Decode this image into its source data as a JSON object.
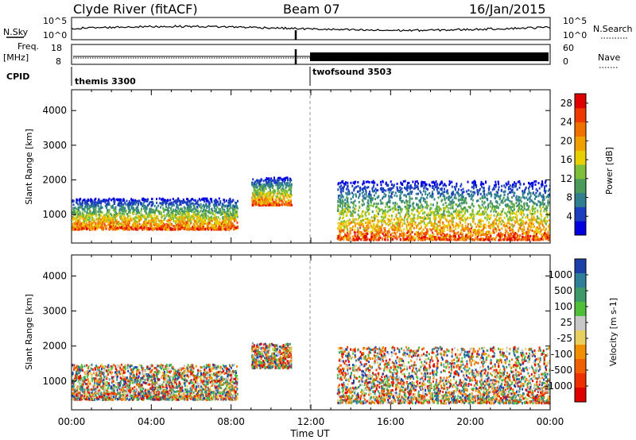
{
  "header": {
    "station": "Clyde River (fitACF)",
    "beam": "Beam 07",
    "date": "16/Jan/2015"
  },
  "status_panel": {
    "nsky_label": "N.Sky",
    "nsearch_label": "N.Search",
    "noise_ticks": [
      "10^5",
      "10^0"
    ],
    "freq_label_1": "Freq.",
    "freq_label_2": "[MHz]",
    "freq_ticks": [
      "18",
      "8"
    ],
    "nave_label": "Nave",
    "nave_ticks": [
      "60",
      "0"
    ],
    "cpid_label": "CPID",
    "cpid_segments": [
      {
        "label": "themis 3300",
        "start_hour": 0,
        "end_hour": 11.97
      },
      {
        "label": "twofsound 3503",
        "start_hour": 11.97,
        "end_hour": 24
      }
    ]
  },
  "x_axis": {
    "label": "Time UT",
    "ticks": [
      "00:00",
      "04:00",
      "08:00",
      "12:00",
      "16:00",
      "20:00",
      "00:00"
    ],
    "range_hours": [
      0,
      24
    ]
  },
  "chart_data": [
    {
      "type": "heatmap",
      "name": "power",
      "ylabel": "Slant Range [km]",
      "y_ticks": [
        "1000",
        "2000",
        "3000",
        "4000"
      ],
      "ylim": [
        180,
        4600
      ],
      "colorbar_label": "Power [dB]",
      "colorbar_ticks": [
        "4",
        "8",
        "12",
        "16",
        "20",
        "24",
        "28"
      ],
      "colorbar_range": [
        0,
        30
      ],
      "colorbar_colors": [
        "#0000e0",
        "#1c3fbf",
        "#2f7f8f",
        "#4a9a5a",
        "#7fbf3a",
        "#e8d000",
        "#f0a000",
        "#f07000",
        "#ee3a00",
        "#e00000"
      ],
      "scatter_regions": [
        {
          "start_hour": 0.0,
          "end_hour": 8.3,
          "range_km": [
            600,
            1500
          ]
        },
        {
          "start_hour": 9.0,
          "end_hour": 11.0,
          "range_km": [
            1300,
            2100
          ]
        },
        {
          "start_hour": 13.3,
          "end_hour": 24.0,
          "range_km": [
            300,
            2000
          ]
        }
      ]
    },
    {
      "type": "heatmap",
      "name": "velocity",
      "ylabel": "Slant Range [km]",
      "y_ticks": [
        "1000",
        "2000",
        "3000",
        "4000"
      ],
      "ylim": [
        180,
        4600
      ],
      "colorbar_label": "Velocity [m s-1]",
      "colorbar_ticks": [
        "1000",
        "500",
        "100",
        "25",
        "-25",
        "-100",
        "-500",
        "-1000"
      ],
      "colorbar_colors": [
        "#1c3fa8",
        "#2e7f9a",
        "#3f9a6a",
        "#4fbf3a",
        "#c8c8c8",
        "#e8d060",
        "#f09000",
        "#f06000",
        "#ee3000",
        "#e00000"
      ],
      "scatter_regions": [
        {
          "start_hour": 0.0,
          "end_hour": 8.3,
          "range_km": [
            500,
            1500
          ]
        },
        {
          "start_hour": 9.0,
          "end_hour": 11.0,
          "range_km": [
            1400,
            2100
          ]
        },
        {
          "start_hour": 13.3,
          "end_hour": 24.0,
          "range_km": [
            400,
            2000
          ]
        }
      ]
    }
  ]
}
